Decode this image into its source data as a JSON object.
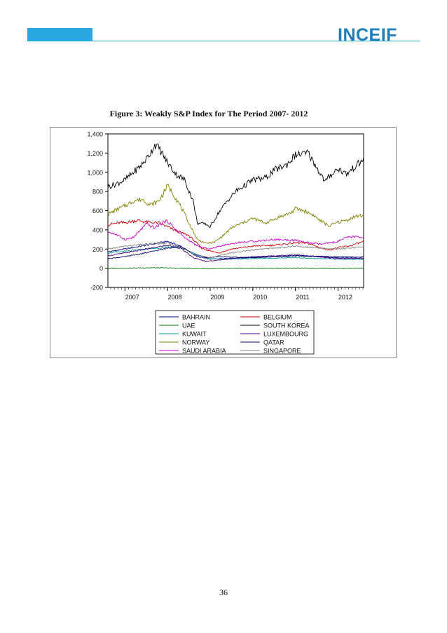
{
  "header": {
    "logo_text": "INCEIF",
    "bar_color": "#29a8e0"
  },
  "figure": {
    "caption": "Figure 3:  Weakly S&P Index for The Period 2007- 2012"
  },
  "chart_data": {
    "type": "line",
    "title": "Weakly S&P Index for The Period 2007- 2012",
    "xlabel": "",
    "ylabel": "",
    "xlim": [
      2006.6,
      2012.6
    ],
    "ylim": [
      -200,
      1400
    ],
    "yticks": [
      -200,
      0,
      200,
      400,
      600,
      800,
      1000,
      1200,
      1400
    ],
    "ytick_labels": [
      "-200",
      "0",
      "200",
      "400",
      "600",
      "800",
      "1,000",
      "1,200",
      "1,400"
    ],
    "xticks": [
      2007,
      2008,
      2009,
      2010,
      2011,
      2012
    ],
    "xtick_labels": [
      "2007",
      "2008",
      "2009",
      "2010",
      "2011",
      "2012"
    ],
    "legend_position": "bottom",
    "series": [
      {
        "name": "BAHRAIN",
        "color": "#00008b",
        "x": [
          2006.6,
          2007.0,
          2007.5,
          2008.0,
          2008.3,
          2008.7,
          2009.0,
          2009.5,
          2010.0,
          2010.5,
          2011.0,
          2011.5,
          2012.0,
          2012.5
        ],
        "values": [
          170,
          200,
          240,
          280,
          230,
          120,
          95,
          105,
          110,
          120,
          130,
          120,
          110,
          105
        ]
      },
      {
        "name": "BELGIUM",
        "color": "#cc0000",
        "x": [
          2006.6,
          2006.8,
          2007.0,
          2007.3,
          2007.5,
          2007.8,
          2008.0,
          2008.2,
          2008.5,
          2008.8,
          2009.0,
          2009.2,
          2009.5,
          2010.0,
          2010.5,
          2011.0,
          2011.3,
          2011.6,
          2011.8,
          2012.0,
          2012.3,
          2012.6
        ],
        "values": [
          450,
          470,
          475,
          500,
          480,
          470,
          430,
          390,
          340,
          210,
          180,
          160,
          200,
          230,
          240,
          265,
          260,
          210,
          190,
          215,
          235,
          280
        ]
      },
      {
        "name": "UAE",
        "color": "#007a00",
        "x": [
          2006.6,
          2007.0,
          2007.5,
          2008.0,
          2008.5,
          2009.0,
          2009.5,
          2010.0,
          2010.5,
          2011.0,
          2011.5,
          2012.0,
          2012.6
        ],
        "values": [
          -2,
          0,
          5,
          3,
          -2,
          -5,
          -3,
          -2,
          -1,
          0,
          -1,
          -2,
          0
        ]
      },
      {
        "name": "SOUTH KOREA",
        "color": "#000000",
        "x": [
          2006.6,
          2006.8,
          2007.0,
          2007.2,
          2007.4,
          2007.6,
          2007.7,
          2007.8,
          2008.0,
          2008.2,
          2008.4,
          2008.6,
          2008.7,
          2008.9,
          2009.0,
          2009.2,
          2009.4,
          2009.6,
          2009.8,
          2010.0,
          2010.3,
          2010.5,
          2010.8,
          2011.0,
          2011.3,
          2011.5,
          2011.7,
          2011.8,
          2012.0,
          2012.2,
          2012.4,
          2012.6
        ],
        "values": [
          850,
          880,
          920,
          1000,
          1080,
          1200,
          1290,
          1250,
          1100,
          980,
          920,
          700,
          470,
          460,
          430,
          580,
          700,
          800,
          860,
          920,
          940,
          1020,
          1080,
          1180,
          1200,
          1050,
          900,
          960,
          1040,
          980,
          1060,
          1130
        ]
      },
      {
        "name": "KUWAIT",
        "color": "#009999",
        "x": [
          2006.6,
          2007.0,
          2007.5,
          2008.0,
          2008.3,
          2008.7,
          2009.0,
          2009.5,
          2010.0,
          2010.5,
          2011.0,
          2011.5,
          2012.0,
          2012.6
        ],
        "values": [
          160,
          175,
          200,
          220,
          215,
          140,
          100,
          95,
          100,
          105,
          110,
          100,
          95,
          90
        ]
      },
      {
        "name": "LUXEMBOURG",
        "color": "#4b0082",
        "x": [
          2006.6,
          2007.0,
          2007.5,
          2008.0,
          2008.3,
          2008.6,
          2008.9,
          2009.3,
          2009.7,
          2010.0,
          2010.5,
          2011.0,
          2011.5,
          2012.0,
          2012.6
        ],
        "values": [
          130,
          160,
          200,
          240,
          210,
          110,
          70,
          90,
          110,
          120,
          130,
          140,
          120,
          100,
          105
        ]
      },
      {
        "name": "NORWAY",
        "color": "#808000",
        "x": [
          2006.6,
          2006.8,
          2007.0,
          2007.2,
          2007.4,
          2007.6,
          2007.8,
          2008.0,
          2008.1,
          2008.3,
          2008.5,
          2008.7,
          2008.9,
          2009.1,
          2009.3,
          2009.5,
          2009.8,
          2010.0,
          2010.3,
          2010.6,
          2010.9,
          2011.0,
          2011.2,
          2011.4,
          2011.6,
          2011.8,
          2012.0,
          2012.2,
          2012.4,
          2012.6
        ],
        "values": [
          560,
          610,
          650,
          700,
          720,
          660,
          700,
          860,
          800,
          650,
          470,
          300,
          260,
          270,
          340,
          420,
          480,
          520,
          470,
          530,
          580,
          620,
          600,
          560,
          490,
          440,
          480,
          500,
          540,
          550
        ]
      },
      {
        "name": "QATAR",
        "color": "#000066",
        "x": [
          2006.6,
          2007.0,
          2007.5,
          2008.0,
          2008.3,
          2008.6,
          2008.9,
          2009.2,
          2009.6,
          2010.0,
          2010.5,
          2011.0,
          2011.5,
          2012.0,
          2012.6
        ],
        "values": [
          100,
          120,
          160,
          210,
          230,
          150,
          110,
          120,
          115,
          110,
          120,
          130,
          125,
          120,
          115
        ]
      },
      {
        "name": "SAUDI ARABIA",
        "color": "#cc00cc",
        "x": [
          2006.6,
          2006.8,
          2007.0,
          2007.2,
          2007.5,
          2007.7,
          2007.9,
          2008.0,
          2008.2,
          2008.4,
          2008.7,
          2009.0,
          2009.3,
          2009.7,
          2010.0,
          2010.5,
          2011.0,
          2011.3,
          2011.6,
          2011.9,
          2012.0,
          2012.2,
          2012.4,
          2012.6
        ],
        "values": [
          380,
          350,
          300,
          320,
          460,
          420,
          480,
          490,
          400,
          320,
          230,
          200,
          240,
          270,
          280,
          300,
          290,
          265,
          250,
          270,
          280,
          320,
          330,
          320
        ]
      },
      {
        "name": "SINGAPORE",
        "color": "#808080",
        "x": [
          2006.6,
          2007.0,
          2007.5,
          2008.0,
          2008.3,
          2008.7,
          2009.0,
          2009.5,
          2010.0,
          2010.5,
          2011.0,
          2011.5,
          2012.0,
          2012.6
        ],
        "values": [
          200,
          230,
          250,
          260,
          220,
          130,
          110,
          160,
          190,
          210,
          230,
          210,
          200,
          225
        ]
      }
    ]
  },
  "footer": {
    "page_number": "36"
  }
}
